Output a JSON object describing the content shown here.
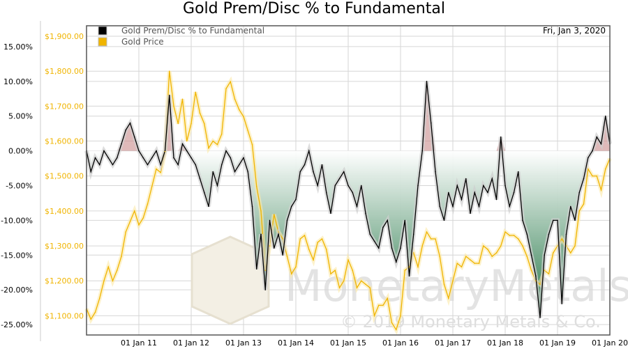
{
  "chart_data": {
    "type": "line",
    "title": "Gold Prem/Disc % to Fundamental",
    "date_label": "Fri, Jan 3, 2020",
    "legend": {
      "placement": "top-left",
      "entries": [
        {
          "label": "Gold Prem/Disc % to Fundamental",
          "color": "#000000"
        },
        {
          "label": "Gold Price",
          "color": "#f0b400"
        }
      ]
    },
    "x_ticks": [
      "01 Jan 11",
      "01 Jan 12",
      "01 Jan 13",
      "01 Jan 14",
      "01 Jan 15",
      "01 Jan 16",
      "01 Jan 17",
      "01 Jan 18",
      "01 Jan 19",
      "01 Jan 20"
    ],
    "xlim": [
      "2010-01",
      "2020-01"
    ],
    "y_left": {
      "ticks": [
        "15.00%",
        "10.00%",
        "5.00%",
        "0.00%",
        "-5.00%",
        "-10.00%",
        "-15.00%",
        "-20.00%",
        "-25.00%"
      ],
      "range": [
        -26.5,
        18
      ]
    },
    "y_right": {
      "ticks": [
        "$1,900.00",
        "$1,800.00",
        "$1,700.00",
        "$1,600.00",
        "$1,500.00",
        "$1,400.00",
        "$1,300.00",
        "$1,200.00",
        "$1,100.00"
      ],
      "range": [
        1045,
        1930
      ],
      "color": "#f0b400"
    },
    "grid": true,
    "fill": {
      "above_zero": "#c98a8a",
      "below_zero": "#2e7d4f"
    },
    "watermark": {
      "logo": "MonetaryMetals",
      "copyright": "© 2019 Monetary Metals & Co."
    },
    "start": "2010-01",
    "step": "monthly",
    "series": [
      {
        "name": "Gold Prem/Disc % to Fundamental",
        "axis": "left",
        "values": [
          0,
          -3,
          -1,
          -2,
          0,
          -1,
          -2,
          -1,
          1,
          3,
          4,
          2,
          0,
          -1,
          -2,
          -1,
          0,
          -2,
          0,
          8,
          -1,
          -2,
          1,
          0,
          -1,
          -2,
          -4,
          -6,
          -8,
          -3,
          -5,
          -2,
          0,
          -1,
          -3,
          -2,
          -1,
          -3,
          -8,
          -17,
          -12,
          -20,
          -10,
          -14,
          -12,
          -15,
          -10,
          -8,
          -7,
          -3,
          -2,
          0,
          -3,
          -5,
          -2,
          -6,
          -9,
          -5,
          -4,
          -3,
          -5,
          -6,
          -8,
          -5,
          -9,
          -12,
          -13,
          -14,
          -11,
          -10,
          -14,
          -16,
          -14,
          -10,
          -18,
          -12,
          -5,
          0,
          10,
          4,
          -3,
          -8,
          -10,
          -6,
          -8,
          -5,
          -7,
          -4,
          -9,
          -6,
          -8,
          -5,
          -6,
          -4,
          -7,
          2,
          -5,
          -8,
          -6,
          -3,
          -10,
          -12,
          -15,
          -18,
          -24,
          -15,
          -12,
          -10,
          -10,
          -22,
          -12,
          -8,
          -10,
          -6,
          -4,
          -1,
          0,
          2,
          1,
          5,
          1
        ]
      },
      {
        "name": "Gold Price",
        "axis": "right",
        "values": [
          1120,
          1090,
          1110,
          1150,
          1200,
          1240,
          1200,
          1230,
          1270,
          1340,
          1370,
          1400,
          1360,
          1380,
          1420,
          1470,
          1520,
          1510,
          1570,
          1800,
          1700,
          1650,
          1720,
          1600,
          1650,
          1740,
          1680,
          1650,
          1580,
          1600,
          1590,
          1620,
          1750,
          1770,
          1720,
          1690,
          1670,
          1630,
          1590,
          1470,
          1400,
          1230,
          1300,
          1390,
          1340,
          1320,
          1270,
          1220,
          1240,
          1320,
          1330,
          1290,
          1260,
          1310,
          1320,
          1290,
          1220,
          1230,
          1180,
          1200,
          1260,
          1230,
          1180,
          1200,
          1190,
          1180,
          1100,
          1130,
          1130,
          1150,
          1080,
          1060,
          1100,
          1230,
          1240,
          1280,
          1240,
          1300,
          1340,
          1320,
          1320,
          1270,
          1190,
          1150,
          1200,
          1250,
          1240,
          1270,
          1260,
          1250,
          1250,
          1300,
          1290,
          1270,
          1280,
          1300,
          1340,
          1330,
          1330,
          1320,
          1300,
          1270,
          1230,
          1200,
          1190,
          1230,
          1220,
          1280,
          1300,
          1320,
          1300,
          1280,
          1300,
          1400,
          1420,
          1520,
          1500,
          1500,
          1460,
          1520,
          1550
        ]
      }
    ]
  }
}
